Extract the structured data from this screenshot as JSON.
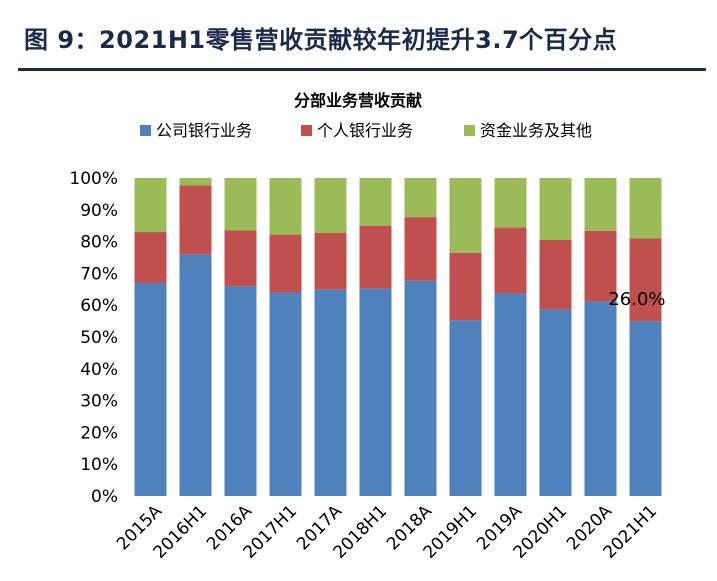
{
  "figure_title": "图 9：2021H1零售营收贡献较年初提升3.7个百分点",
  "colors": {
    "title": "#1b2a4a",
    "corporate": "#4f81bd",
    "retail": "#c0504d",
    "treasury": "#9bbb59"
  },
  "chart_data": {
    "type": "bar",
    "stacked": true,
    "title": "分部业务营收贡献",
    "categories": [
      "2015A",
      "2016H1",
      "2016A",
      "2017H1",
      "2017A",
      "2018H1",
      "2018A",
      "2019H1",
      "2019A",
      "2020H1",
      "2020A",
      "2021H1"
    ],
    "series": [
      {
        "name": "公司银行业务",
        "color": "#4f81bd",
        "values": [
          67,
          76,
          66,
          64,
          65,
          65.3,
          67.7,
          55.3,
          63.7,
          58.7,
          61.2,
          55
        ]
      },
      {
        "name": "个人银行业务",
        "color": "#c0504d",
        "values": [
          16,
          21.7,
          17.5,
          18.2,
          17.7,
          19.7,
          20,
          21.2,
          20.8,
          21.8,
          22.2,
          26
        ]
      },
      {
        "name": "资金业务及其他",
        "color": "#9bbb59",
        "values": [
          17,
          2.3,
          16.5,
          17.8,
          17.3,
          15,
          12.3,
          23.5,
          15.5,
          19.5,
          16.6,
          19
        ]
      }
    ],
    "ylim": [
      0,
      100
    ],
    "yticks": [
      "0%",
      "10%",
      "20%",
      "30%",
      "40%",
      "50%",
      "60%",
      "70%",
      "80%",
      "90%",
      "100%"
    ],
    "annotations": [
      {
        "text": "26.0%",
        "category": "2021H1"
      }
    ],
    "legend_position": "top",
    "grid": false
  }
}
